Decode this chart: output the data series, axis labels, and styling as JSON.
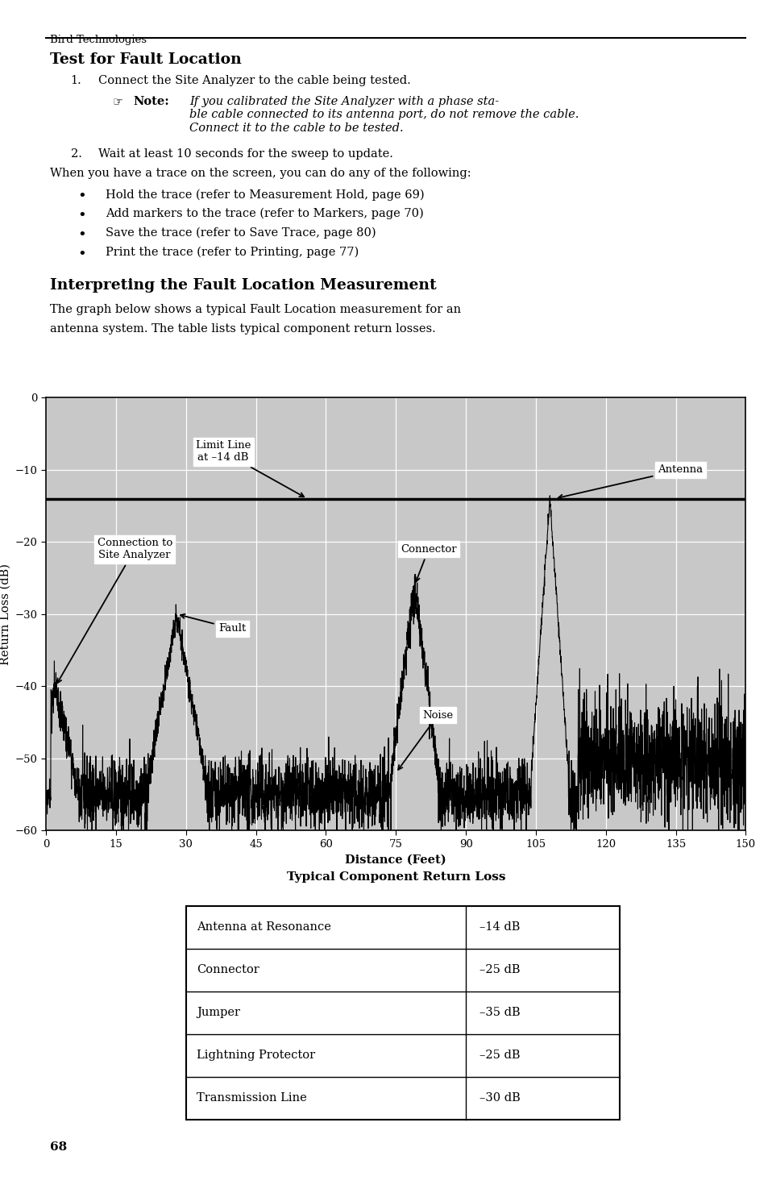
{
  "page_header": "Bird Technologies",
  "section1_title": "Test for Fault Location",
  "section1_item1": "Connect the Site Analyzer to the cable being tested.",
  "section1_item2": "Wait at least 10 seconds for the sweep to update.",
  "note_bold": "Note:",
  "note_italic": "If you calibrated the Site Analyzer with a phase sta-\nble cable connected to its antenna port, do not remove the cable.\nConnect it to the cable to be tested.",
  "when_text": "When you have a trace on the screen, you can do any of the following:",
  "bullet_items": [
    "Hold the trace (refer to Measurement Hold, page 69)",
    "Add markers to the trace (refer to Markers, page 70)",
    "Save the trace (refer to Save Trace, page 80)",
    "Print the trace (refer to Printing, page 77)"
  ],
  "section2_title": "Interpreting the Fault Location Measurement",
  "section2_desc1": "The graph below shows a typical Fault Location measurement for an",
  "section2_desc2": "antenna system. The table lists typical component return losses.",
  "graph_bg_color": "#c8c8c8",
  "graph_line_color": "#000000",
  "limit_line_y": -14,
  "xlabel": "Distance (Feet)",
  "ylabel": "Return Loss (dB)",
  "xlim": [
    0,
    150
  ],
  "ylim": [
    -60,
    0
  ],
  "xticks": [
    0,
    15,
    30,
    45,
    60,
    75,
    90,
    105,
    120,
    135,
    150
  ],
  "yticks": [
    0,
    -10,
    -20,
    -30,
    -40,
    -50,
    -60
  ],
  "table_title": "Typical Component Return Loss",
  "table_data": [
    [
      "Antenna at Resonance",
      "–14 dB"
    ],
    [
      "Connector",
      "–25 dB"
    ],
    [
      "Jumper",
      "–35 dB"
    ],
    [
      "Lightning Protector",
      "–25 dB"
    ],
    [
      "Transmission Line",
      "–30 dB"
    ]
  ],
  "page_number": "68",
  "bg_color": "#ffffff"
}
